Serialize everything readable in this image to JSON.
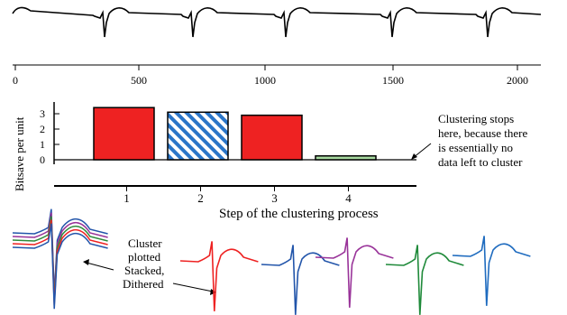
{
  "ecg": {
    "ticks": [
      "0",
      "500",
      "1000",
      "1500",
      "2000"
    ],
    "beat_color": "#000000"
  },
  "chart_data": {
    "type": "bar",
    "categories": [
      "1",
      "2",
      "3",
      "4"
    ],
    "values": [
      3.4,
      3.1,
      2.9,
      0.25
    ],
    "bar_fills": [
      "red",
      "hatched-blue",
      "red",
      "green"
    ],
    "ylabel": "Bitsave per unit",
    "xlabel": "Step of the clustering process",
    "yticks": [
      "0",
      "1",
      "2",
      "3"
    ],
    "ylim": [
      0,
      3.6
    ],
    "colors": {
      "red": "#ee2222",
      "blue": "#2a75c8",
      "green": "#a7d9a0"
    }
  },
  "annotations": {
    "clustering_stops": [
      "Clustering stops",
      "here, because there",
      "is essentially no",
      "data left to cluster"
    ],
    "cluster_plotted": [
      "Cluster",
      "plotted",
      "Stacked,",
      "Dithered"
    ]
  },
  "motifs": {
    "stacked_colors": [
      "#2255aa",
      "#993399",
      "#2e8b3a",
      "#ee2222",
      "#2255aa"
    ],
    "row": [
      {
        "color": "#ee2222",
        "trail_color": "#ee2222"
      },
      {
        "color": "#2255aa",
        "trail_color": "#2255aa"
      },
      {
        "color": "#993399",
        "trail_color": "#993399"
      },
      {
        "color": "#1f8a3a",
        "trail_color": "#2e8b3a"
      },
      {
        "color": "#1e6bbf",
        "trail_color": "#1e6bbf"
      }
    ]
  }
}
